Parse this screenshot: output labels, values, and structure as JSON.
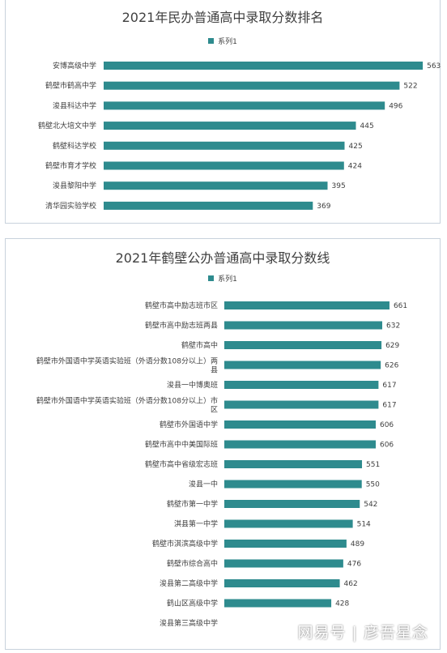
{
  "chart_data": [
    {
      "type": "bar",
      "orientation": "horizontal",
      "title": "2021年民办普通高中录取分数排名",
      "legend": {
        "position": "top"
      },
      "series": [
        {
          "name": "系列1",
          "color": "#2e8b8e",
          "values": [
            563,
            522,
            496,
            445,
            425,
            424,
            395,
            369
          ]
        }
      ],
      "categories": [
        "安博高级中学",
        "鹤壁市鹤高中学",
        "浚县科达中学",
        "鹤壁北大培文中学",
        "鹤壁科达学校",
        "鹤壁市育才学校",
        "浚县黎阳中学",
        "清华园实验学校"
      ],
      "xlim": [
        0,
        600
      ],
      "grid": false
    },
    {
      "type": "bar",
      "orientation": "horizontal",
      "title": "2021年鹤壁公办普通高中录取分数线",
      "legend": {
        "position": "top"
      },
      "series": [
        {
          "name": "系列1",
          "color": "#2e8b8e",
          "values": [
            661,
            632,
            629,
            626,
            617,
            617,
            606,
            606,
            551,
            550,
            542,
            514,
            489,
            476,
            462,
            428,
            0
          ]
        }
      ],
      "categories": [
        "鹤壁市高中励志班市区",
        "鹤壁市高中励志班两县",
        "鹤壁市高中",
        "鹤壁市外国语中学英语实验班（外语分数108分以上）两县",
        "浚县一中博奥班",
        "鹤壁市外国语中学英语实验班（外语分数108分以上）市区",
        "鹤壁市外国语中学",
        "鹤壁市高中中美国际班",
        "鹤壁市高中省级宏志班",
        "浚县一中",
        "鹤壁市第一中学",
        "淇县第一中学",
        "鹤壁市淇滨高级中学",
        "鹤壁市综合高中",
        "浚县第二高级中学",
        "鹤山区高级中学",
        "浚县第三高级中学"
      ],
      "xlim": [
        0,
        700
      ],
      "grid": false
    }
  ],
  "watermark": "网易号 | 彦吾星念"
}
